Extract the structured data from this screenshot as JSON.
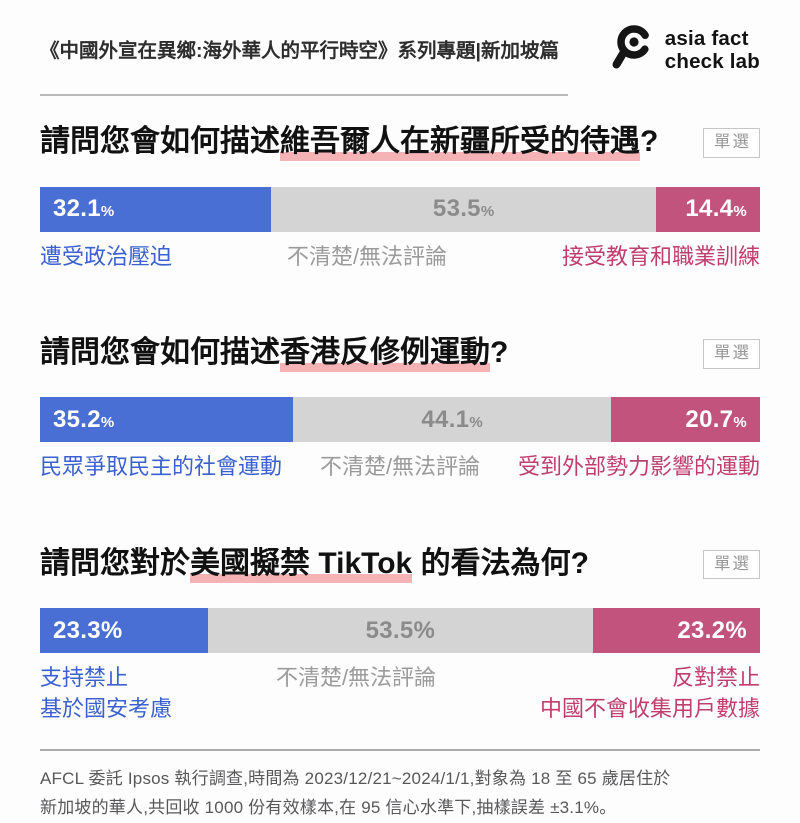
{
  "header": {
    "title": "《中國外宣在異鄉:海外華人的平行時空》系列專題|新加坡篇",
    "logo": {
      "icon": "magnifier-eye-icon",
      "line1": "asia fact",
      "line2": "check lab"
    }
  },
  "badge_label": "單選",
  "percent_sign": "%",
  "colors": {
    "bar_blue": "#4a6fd4",
    "bar_gray": "#d4d4d4",
    "bar_pink": "#c2537c",
    "label_blue": "#3a61cf",
    "label_gray": "#9b9b9b",
    "label_pink": "#c03e6e",
    "title_highlight": "#f5b3b6"
  },
  "questions": [
    {
      "title_prefix": "請問您會如何描述",
      "title_highlight": "維吾爾人在新疆所受的待遇",
      "title_suffix": "?",
      "segments": [
        {
          "value": "32.1",
          "pct": 32.1,
          "label": "遭受政治壓迫"
        },
        {
          "value": "53.5",
          "pct": 53.5,
          "label": "不清楚/無法評論"
        },
        {
          "value": "14.4",
          "pct": 14.4,
          "label": "接受教育和職業訓練"
        }
      ]
    },
    {
      "title_prefix": "請問您會如何描述",
      "title_highlight": "香港反修例運動",
      "title_suffix": "?",
      "segments": [
        {
          "value": "35.2",
          "pct": 35.2,
          "label": "民眾爭取民主的社會運動"
        },
        {
          "value": "44.1",
          "pct": 44.1,
          "label": "不清楚/無法評論"
        },
        {
          "value": "20.7",
          "pct": 20.7,
          "label": "受到外部勢力影響的運動"
        }
      ]
    },
    {
      "title_prefix": "請問您對於",
      "title_highlight": "美國擬禁 TikTok",
      "title_suffix": " 的看法為何?",
      "segments": [
        {
          "value": "23.3",
          "pct": 23.3,
          "label_lines": [
            "支持禁止",
            "基於國安考慮"
          ]
        },
        {
          "value": "53.5",
          "pct": 53.5,
          "label": "不清楚/無法評論"
        },
        {
          "value": "23.2",
          "pct": 23.2,
          "label_lines": [
            "反對禁止",
            "中國不會收集用戶數據"
          ]
        }
      ]
    }
  ],
  "footer": {
    "line1": "AFCL 委託 Ipsos 執行調查,時間為 2023/12/21~2024/1/1,對象為 18 至 65 歲居住於",
    "line2": "新加坡的華人,共回收 1000 份有效樣本,在 95 信心水準下,抽樣誤差 ±3.1%。"
  },
  "chart_data": [
    {
      "type": "bar",
      "orientation": "horizontal",
      "stacked": true,
      "title": "請問您會如何描述維吾爾人在新疆所受的待遇?",
      "categories": [
        "遭受政治壓迫",
        "不清楚/無法評論",
        "接受教育和職業訓練"
      ],
      "values": [
        32.1,
        53.5,
        14.4
      ],
      "unit": "%",
      "colors": [
        "#4a6fd4",
        "#d4d4d4",
        "#c2537c"
      ],
      "xlim": [
        0,
        100
      ]
    },
    {
      "type": "bar",
      "orientation": "horizontal",
      "stacked": true,
      "title": "請問您會如何描述香港反修例運動?",
      "categories": [
        "民眾爭取民主的社會運動",
        "不清楚/無法評論",
        "受到外部勢力影響的運動"
      ],
      "values": [
        35.2,
        44.1,
        20.7
      ],
      "unit": "%",
      "colors": [
        "#4a6fd4",
        "#d4d4d4",
        "#c2537c"
      ],
      "xlim": [
        0,
        100
      ]
    },
    {
      "type": "bar",
      "orientation": "horizontal",
      "stacked": true,
      "title": "請問您對於美國擬禁 TikTok 的看法為何?",
      "categories": [
        "支持禁止 基於國安考慮",
        "不清楚/無法評論",
        "反對禁止 中國不會收集用戶數據"
      ],
      "values": [
        23.3,
        53.5,
        23.2
      ],
      "unit": "%",
      "colors": [
        "#4a6fd4",
        "#d4d4d4",
        "#c2537c"
      ],
      "xlim": [
        0,
        100
      ]
    }
  ]
}
